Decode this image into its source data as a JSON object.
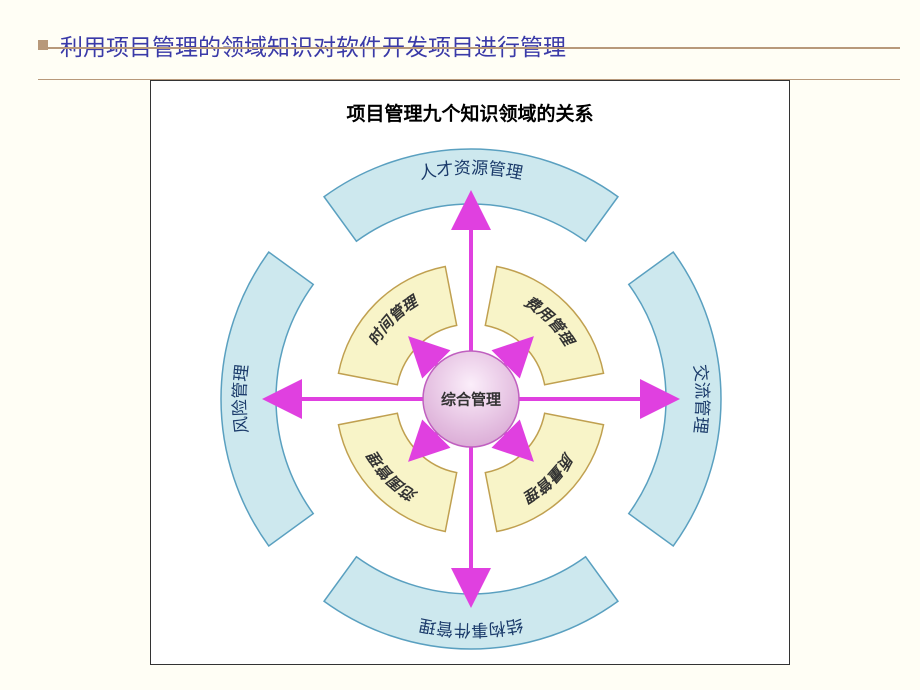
{
  "page": {
    "title": "利用项目管理的领域知识对软件开发项目进行管理",
    "title_color": "#3a3aa8",
    "background": "#fffef5",
    "rule_color": "#b8997a"
  },
  "diagram": {
    "title": "项目管理九个知识领域的关系",
    "frame_border": "#333333",
    "frame_bg": "#ffffff",
    "center": {
      "label": "综合管理",
      "fill_top": "#fbeefa",
      "fill_bottom": "#d9a8d4",
      "stroke": "#c060c0",
      "radius": 48
    },
    "arrows": {
      "color": "#e040e0",
      "width": 4,
      "count": 8
    },
    "outer_ring": {
      "fill": "#cde8ee",
      "stroke": "#5aa0c0",
      "inner_r": 195,
      "outer_r": 250
    },
    "inner_ring": {
      "fill": "#f8f4c8",
      "stroke": "#c0a050",
      "inner_r": 75,
      "outer_r": 135
    },
    "outer_segments": [
      {
        "label": "人才资源管理",
        "angle_deg": -90
      },
      {
        "label": "交流管理",
        "angle_deg": 0
      },
      {
        "label": "结构事件管理",
        "angle_deg": 90
      },
      {
        "label": "风险管理",
        "angle_deg": 180
      }
    ],
    "inner_segments": [
      {
        "label": "时间管理",
        "angle_deg": -135
      },
      {
        "label": "费用管理",
        "angle_deg": -45
      },
      {
        "label": "质量管理",
        "angle_deg": 45
      },
      {
        "label": "范围管理",
        "angle_deg": 135
      }
    ]
  }
}
